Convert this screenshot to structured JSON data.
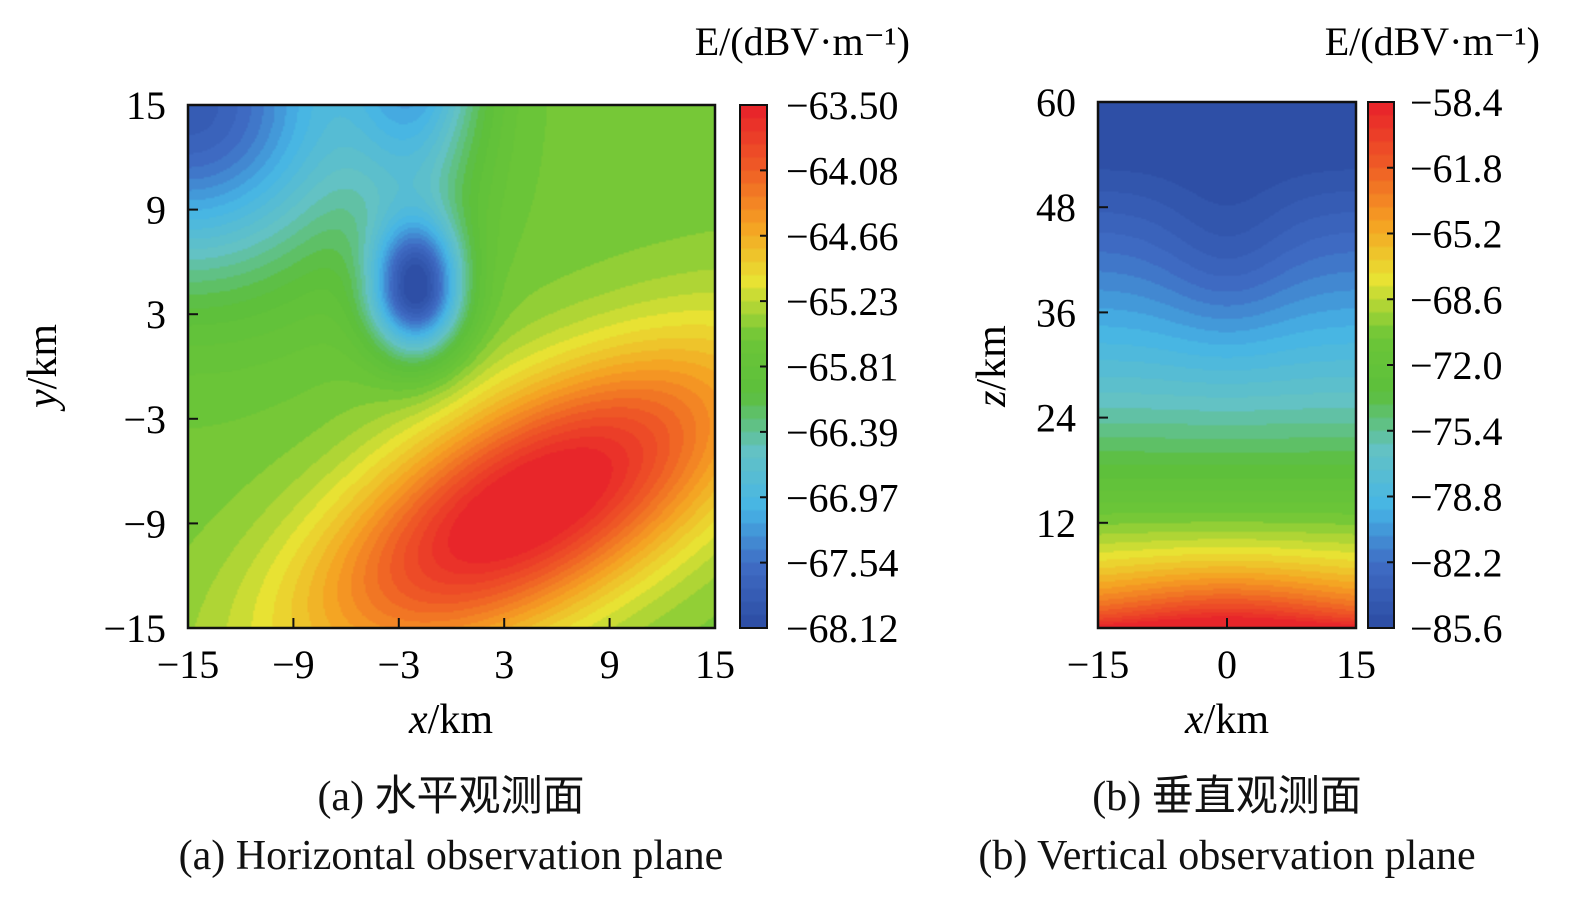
{
  "chart_data": [
    {
      "type": "heatmap",
      "panel": "a",
      "xlabel": "x/km",
      "ylabel": "y/km",
      "xlim": [
        -15,
        15
      ],
      "ylim": [
        -15,
        15
      ],
      "xticks": [
        "−15",
        "−9",
        "−3",
        "3",
        "9",
        "15"
      ],
      "yticks": [
        "15",
        "9",
        "3",
        "−3",
        "−9",
        "−15"
      ],
      "colorbar_unit": "E/(dBV·m⁻¹)",
      "colorbar_ticks": [
        "−63.50",
        "−64.08",
        "−64.66",
        "−65.23",
        "−65.81",
        "−66.39",
        "−66.97",
        "−67.54",
        "−68.12"
      ],
      "colorbar_range": [
        -68.12,
        -63.5
      ],
      "features": {
        "max_center": [
          4.5,
          -8.0
        ],
        "max_value": -63.5,
        "min_center": [
          -2.0,
          4.5
        ],
        "min_value": -68.12,
        "corner_low": [
          -15,
          15
        ]
      },
      "caption_cn": "(a) 水平观测面",
      "caption_en": "(a) Horizontal observation plane"
    },
    {
      "type": "heatmap",
      "panel": "b",
      "xlabel": "x/km",
      "ylabel": "z/km",
      "xlim": [
        -15,
        15
      ],
      "ylim": [
        0,
        60
      ],
      "xticks": [
        "−15",
        "0",
        "15"
      ],
      "yticks": [
        "60",
        "48",
        "36",
        "24",
        "12"
      ],
      "colorbar_unit": "E/(dBV·m⁻¹)",
      "colorbar_ticks": [
        "−58.4",
        "−61.8",
        "−65.2",
        "−68.6",
        "−72.0",
        "−75.4",
        "−78.8",
        "−82.2",
        "−85.6"
      ],
      "colorbar_range": [
        -85.6,
        -58.4
      ],
      "features": {
        "max_center": [
          0,
          0
        ],
        "max_value": -58.4,
        "min_region_z": 60,
        "min_value": -85.6
      },
      "caption_cn": "(b) 垂直观测面",
      "caption_en": "(b) Vertical observation plane"
    }
  ],
  "colors": {
    "colormap": [
      "#2e4fa6",
      "#3f6cc4",
      "#46b5e6",
      "#63c2c4",
      "#5cbf3c",
      "#6cc637",
      "#e8e233",
      "#f5a022",
      "#ef5b26",
      "#e8262a"
    ]
  }
}
